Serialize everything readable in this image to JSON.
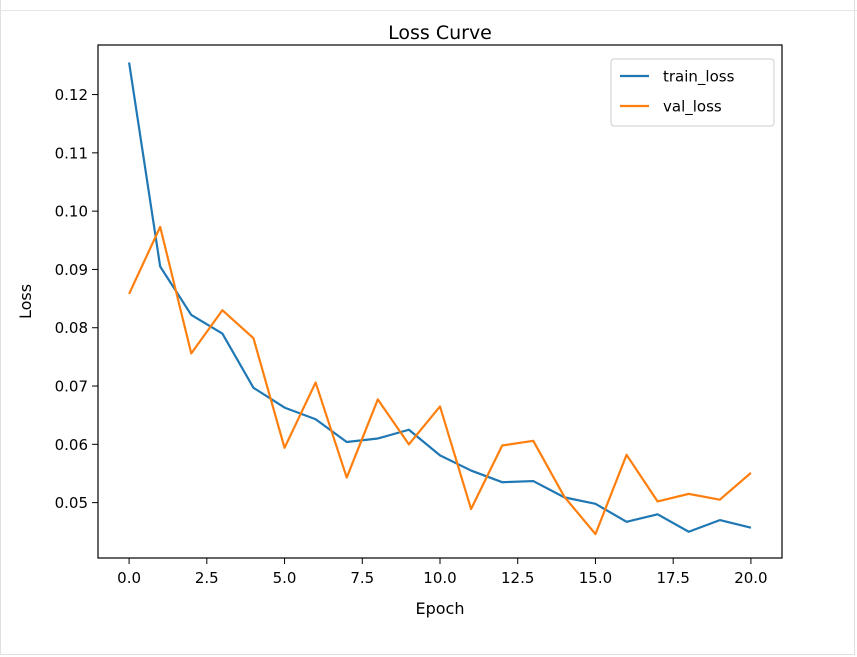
{
  "chart_data": {
    "type": "line",
    "title": "Loss Curve",
    "xlabel": "Epoch",
    "ylabel": "Loss",
    "xlim": [
      -1,
      21
    ],
    "ylim": [
      0.0405,
      0.1285
    ],
    "xticks": [
      "0.0",
      "2.5",
      "5.0",
      "7.5",
      "10.0",
      "12.5",
      "15.0",
      "17.5",
      "20.0"
    ],
    "xtick_values": [
      0,
      2.5,
      5,
      7.5,
      10,
      12.5,
      15,
      17.5,
      20
    ],
    "yticks": [
      "0.05",
      "0.06",
      "0.07",
      "0.08",
      "0.09",
      "0.10",
      "0.11",
      "0.12"
    ],
    "ytick_values": [
      0.05,
      0.06,
      0.07,
      0.08,
      0.09,
      0.1,
      0.11,
      0.12
    ],
    "grid": false,
    "legend_position": "top-right",
    "x": [
      0,
      1,
      2,
      3,
      4,
      5,
      6,
      7,
      8,
      9,
      10,
      11,
      12,
      13,
      14,
      15,
      16,
      17,
      18,
      19,
      20
    ],
    "series": [
      {
        "name": "train_loss",
        "color": "#1f77b4",
        "values": [
          0.1255,
          0.0905,
          0.0822,
          0.079,
          0.0697,
          0.0663,
          0.0643,
          0.0604,
          0.061,
          0.0625,
          0.0581,
          0.0555,
          0.0535,
          0.0537,
          0.0509,
          0.0498,
          0.0467,
          0.048,
          0.045,
          0.047,
          0.0457
        ]
      },
      {
        "name": "val_loss",
        "color": "#ff7f0e",
        "values": [
          0.0858,
          0.0973,
          0.0756,
          0.083,
          0.0782,
          0.0594,
          0.0706,
          0.0543,
          0.0677,
          0.06,
          0.0665,
          0.0489,
          0.0598,
          0.0606,
          0.051,
          0.0446,
          0.0582,
          0.0502,
          0.0515,
          0.0505,
          0.0551
        ]
      }
    ]
  }
}
